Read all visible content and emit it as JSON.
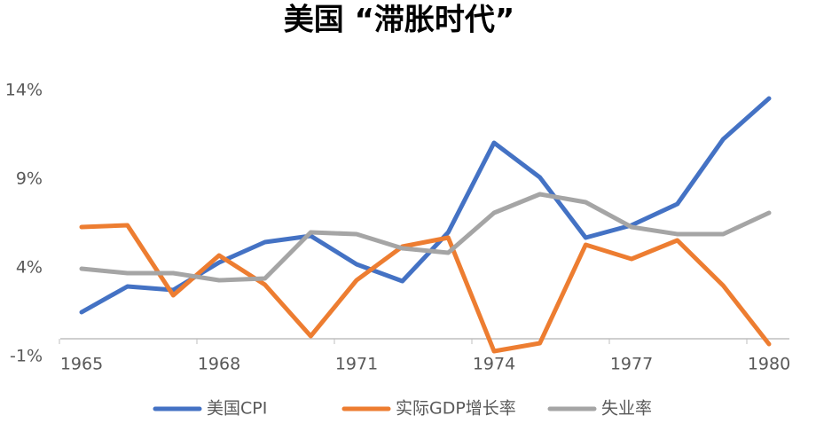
{
  "chart_data": {
    "type": "line",
    "title": "美国 “滞胀时代”",
    "x": [
      1965,
      1966,
      1967,
      1968,
      1969,
      1970,
      1971,
      1972,
      1973,
      1974,
      1975,
      1976,
      1977,
      1978,
      1979,
      1980
    ],
    "xlim": [
      1965,
      1980
    ],
    "xticks": [
      1965,
      1968,
      1971,
      1974,
      1977,
      1980
    ],
    "ylim": [
      -1,
      14
    ],
    "yticks": [
      {
        "value": -1,
        "label": "-1%"
      },
      {
        "value": 4,
        "label": "4%"
      },
      {
        "value": 9,
        "label": "9%"
      },
      {
        "value": 14,
        "label": "14%"
      }
    ],
    "grid": false,
    "legend": "bottom",
    "series": [
      {
        "name": "美国CPI",
        "color": "#4472c4",
        "values": [
          1.5,
          2.95,
          2.75,
          4.3,
          5.45,
          5.8,
          4.2,
          3.25,
          6.0,
          11.05,
          9.1,
          5.7,
          6.4,
          7.6,
          11.25,
          13.55
        ]
      },
      {
        "name": "实际GDP增长率",
        "color": "#ed7d31",
        "values": [
          6.3,
          6.4,
          2.45,
          4.7,
          3.05,
          0.15,
          3.3,
          5.2,
          5.7,
          -0.7,
          -0.25,
          5.3,
          4.5,
          5.55,
          3.0,
          -0.3
        ]
      },
      {
        "name": "失业率",
        "color": "#a5a5a5",
        "values": [
          3.95,
          3.7,
          3.7,
          3.3,
          3.4,
          6.0,
          5.9,
          5.1,
          4.85,
          7.1,
          8.15,
          7.7,
          6.3,
          5.9,
          5.9,
          7.1
        ]
      }
    ]
  }
}
